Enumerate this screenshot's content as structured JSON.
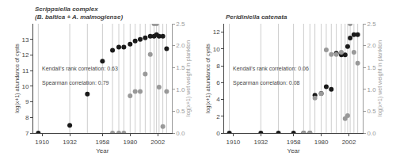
{
  "chart_data": [
    {
      "type": "scatter",
      "title": "Scrippsiella complex",
      "subtitle": "(B. baltica + A. malmogiense)",
      "x_label": "Year",
      "y_label": "log(x+1) abundance of cysts",
      "y2_label": "log(x+1) wet weight in plankton",
      "annotations": [
        "Kendall's rank correlation: 0.63",
        "Spearman correlation: 0.79"
      ],
      "grid": false,
      "xlim": [
        1903,
        2013
      ],
      "xticks": [
        1910,
        1932,
        1958,
        1980,
        2002
      ],
      "ylim": [
        7,
        14
      ],
      "yticks": [
        7,
        8,
        9,
        10,
        11,
        12,
        13
      ],
      "y2lim": [
        0.0,
        2.5
      ],
      "y2ticks": [
        {
          "value": 0.0,
          "label": "0.0"
        },
        0.5,
        {
          "value": 1.0,
          "label": "1.0"
        },
        1.5,
        {
          "value": 2.0,
          "label": "2.0"
        },
        2.5
      ],
      "series": [
        {
          "type": "vline",
          "color": "#cccccc",
          "x": [
            1907,
            1932,
            1946,
            1958,
            1966,
            1971,
            1975,
            1980,
            1984,
            1988,
            1992,
            1996,
            1999,
            2001,
            2003,
            2006,
            2009
          ]
        },
        {
          "type": "scatter",
          "axis": "y2",
          "color": "#999999",
          "x": [
            1966,
            1971,
            1975,
            1980,
            1984,
            1988,
            1992,
            1996,
            1999,
            2001,
            2003,
            2006,
            2009
          ],
          "values": [
            0.0,
            0.0,
            0.0,
            0.85,
            0.95,
            0.95,
            1.35,
            1.8,
            2.5,
            2.5,
            1.05,
            0.15,
            0.95
          ]
        },
        {
          "type": "scatter",
          "color": "#1a1a1a",
          "x": [
            1907,
            1932,
            1946,
            1958,
            1966,
            1971,
            1975,
            1980,
            1984,
            1988,
            1992,
            1996,
            1999,
            2001,
            2003,
            2006,
            2009
          ],
          "values": [
            7.0,
            7.5,
            9.5,
            11.6,
            12.3,
            12.5,
            12.5,
            12.7,
            12.9,
            13.0,
            13.1,
            13.2,
            13.2,
            13.3,
            13.2,
            13.2,
            12.4
          ]
        }
      ]
    },
    {
      "type": "scatter",
      "title": "Peridiniella catenata",
      "x_label": "Year",
      "y_label": "log(x+1) abundance of cysts",
      "y2_label": "log(x+1) wet weight in plankton",
      "annotations": [
        "Kendall's rank correlation: 0.06",
        "Spearman correlation: 0.08"
      ],
      "grid": false,
      "xlim": [
        1903,
        2013
      ],
      "xticks": [
        1910,
        1932,
        1958,
        1980,
        2002
      ],
      "ylim": [
        0,
        13
      ],
      "yticks": [
        0,
        2,
        4,
        6,
        8,
        10,
        12
      ],
      "y2lim": [
        0.0,
        2.5
      ],
      "y2ticks": [
        {
          "value": 0.0,
          "label": "0.0"
        },
        0.5,
        {
          "value": 1.0,
          "label": "1.0"
        },
        1.5,
        {
          "value": 2.0,
          "label": "2.0"
        },
        2.5
      ],
      "series": [
        {
          "type": "vline",
          "color": "#cccccc",
          "x": [
            1907,
            1932,
            1946,
            1958,
            1966,
            1971,
            1975,
            1980,
            1984,
            1988,
            1992,
            1996,
            1999,
            2001,
            2003,
            2006,
            2009
          ]
        },
        {
          "type": "scatter",
          "axis": "y2",
          "color": "#999999",
          "x": [
            1966,
            1971,
            1975,
            1980,
            1984,
            1988,
            1992,
            1996,
            1999,
            2001,
            2003,
            2006,
            2009
          ],
          "values": [
            0.0,
            0.0,
            0.8,
            0.9,
            1.9,
            1.8,
            1.8,
            1.85,
            0.33,
            0.4,
            2.5,
            1.85,
            1.6
          ]
        },
        {
          "type": "scatter",
          "color": "#1a1a1a",
          "x": [
            1907,
            1932,
            1946,
            1958,
            1966,
            1971,
            1975,
            1980,
            1984,
            1988,
            1992,
            1996,
            1999,
            2001,
            2003,
            2006,
            2009
          ],
          "values": [
            0.0,
            0.0,
            0.0,
            0.0,
            0.0,
            0.0,
            4.5,
            4.7,
            5.5,
            5.2,
            9.5,
            9.3,
            9.3,
            10.3,
            11.3,
            11.7,
            11.7
          ]
        }
      ]
    }
  ]
}
